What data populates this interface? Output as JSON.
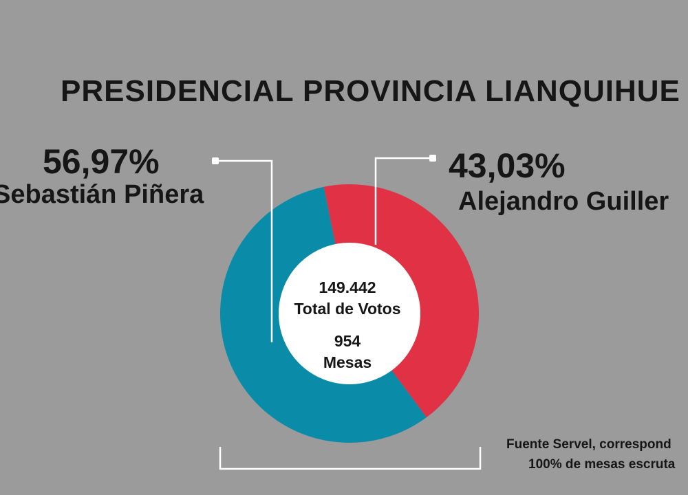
{
  "title": "PRESIDENCIAL PROVINCIA LIANQUIHUE",
  "center": {
    "total_votes": "149.442",
    "total_votes_label": "Total de Votos",
    "mesas": "954",
    "mesas_label": "Mesas"
  },
  "source": {
    "line1": "Fuente Servel, correspond",
    "line2": "100% de mesas escruta"
  },
  "colors": {
    "background": "#9b9b9b",
    "pinera": "#0a8ca9",
    "guillier": "#e03145",
    "center": "#ffffff"
  },
  "chart_data": {
    "type": "pie",
    "title": "PRESIDENCIAL PROVINCIA LIANQUIHUE",
    "slices": [
      {
        "label": "Sebastián Piñera",
        "value": 56.97,
        "display": "56,97%",
        "color": "#0a8ca9"
      },
      {
        "label": "Alejandro Guiller",
        "value": 43.03,
        "display": "43,03%",
        "color": "#e03145"
      }
    ]
  }
}
